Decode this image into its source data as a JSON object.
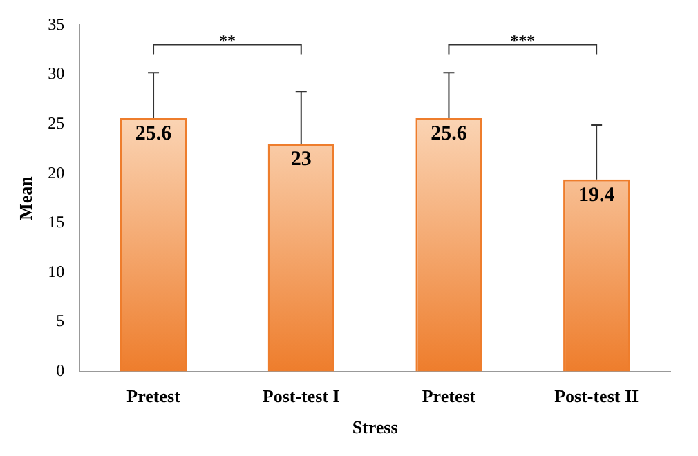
{
  "chart_data": {
    "type": "bar",
    "xlabel": "Stress",
    "ylabel": "Mean",
    "categories": [
      "Pretest",
      "Post-test I",
      "Pretest",
      "Post-test II"
    ],
    "values": [
      25.6,
      23,
      25.6,
      19.4
    ],
    "errors": [
      [
        25.6,
        30.2
      ],
      [
        23,
        28.3
      ],
      [
        25.6,
        30.2
      ],
      [
        19.4,
        24.9
      ]
    ],
    "color": "#ee7d2c",
    "ylim": [
      0,
      35
    ],
    "yticks": [
      0,
      5,
      10,
      15,
      20,
      25,
      30,
      35
    ],
    "grid": false,
    "legend": false,
    "data_labels": true,
    "annotations": [
      "**",
      "***"
    ]
  }
}
